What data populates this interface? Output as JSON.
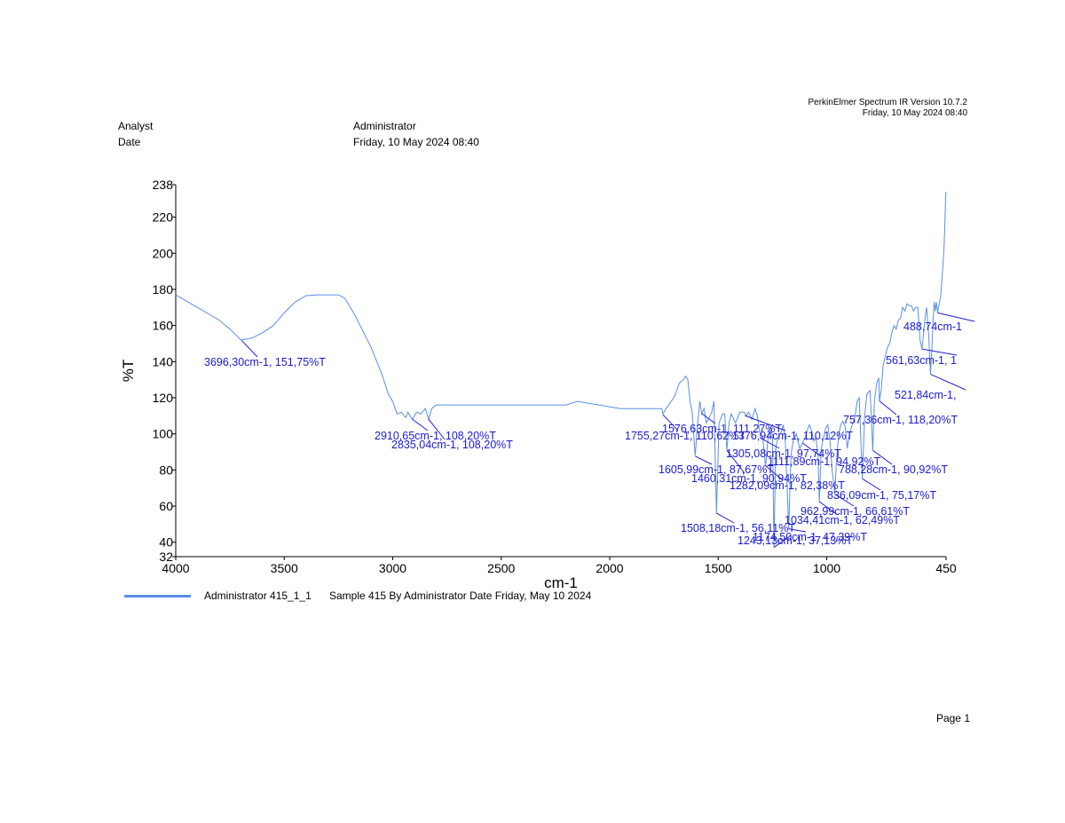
{
  "header": {
    "software": "PerkinElmer Spectrum IR Version 10.7.2",
    "timestamp": "Friday, 10 May 2024 08:40",
    "analyst_label": "Analyst",
    "analyst_value": "Administrator",
    "date_label": "Date",
    "date_value": "Friday, 10 May 2024 08:40"
  },
  "chart_data": {
    "type": "line",
    "xlabel": "cm-1",
    "ylabel": "%T",
    "xlim": [
      4000,
      450
    ],
    "ylim": [
      32,
      238
    ],
    "x_ticks": [
      4000,
      3500,
      3000,
      2500,
      2000,
      1500,
      1000,
      450
    ],
    "y_ticks": [
      32,
      40,
      60,
      80,
      100,
      120,
      140,
      160,
      180,
      200,
      220,
      238
    ],
    "series": [
      {
        "name": "Administrator 415_1_1",
        "color": "#5b8ee6",
        "points": [
          [
            4000,
            177
          ],
          [
            3900,
            170
          ],
          [
            3800,
            163
          ],
          [
            3750,
            158
          ],
          [
            3700,
            152
          ],
          [
            3650,
            153
          ],
          [
            3600,
            156
          ],
          [
            3550,
            160
          ],
          [
            3500,
            167
          ],
          [
            3450,
            173
          ],
          [
            3400,
            176.5
          ],
          [
            3350,
            177
          ],
          [
            3300,
            177
          ],
          [
            3250,
            177
          ],
          [
            3220,
            175
          ],
          [
            3180,
            167
          ],
          [
            3150,
            160
          ],
          [
            3100,
            148
          ],
          [
            3050,
            133
          ],
          [
            3020,
            122
          ],
          [
            3000,
            118
          ],
          [
            2980,
            111
          ],
          [
            2960,
            112
          ],
          [
            2940,
            109
          ],
          [
            2930,
            112
          ],
          [
            2910,
            108
          ],
          [
            2890,
            112
          ],
          [
            2870,
            111
          ],
          [
            2850,
            114
          ],
          [
            2835,
            108
          ],
          [
            2820,
            114
          ],
          [
            2800,
            116
          ],
          [
            2700,
            116
          ],
          [
            2600,
            116
          ],
          [
            2500,
            116
          ],
          [
            2400,
            116
          ],
          [
            2300,
            116
          ],
          [
            2200,
            116
          ],
          [
            2150,
            118
          ],
          [
            2100,
            117
          ],
          [
            2050,
            116
          ],
          [
            2000,
            115
          ],
          [
            1950,
            114
          ],
          [
            1900,
            114
          ],
          [
            1850,
            114
          ],
          [
            1800,
            114
          ],
          [
            1760,
            114
          ],
          [
            1755,
            111
          ],
          [
            1740,
            114
          ],
          [
            1700,
            121
          ],
          [
            1680,
            128
          ],
          [
            1660,
            130
          ],
          [
            1650,
            132
          ],
          [
            1640,
            130
          ],
          [
            1630,
            118
          ],
          [
            1620,
            112
          ],
          [
            1606,
            88
          ],
          [
            1595,
            105
          ],
          [
            1585,
            118
          ],
          [
            1576,
            111
          ],
          [
            1565,
            114
          ],
          [
            1555,
            106
          ],
          [
            1530,
            112
          ],
          [
            1520,
            118
          ],
          [
            1508,
            56
          ],
          [
            1496,
            106
          ],
          [
            1480,
            111
          ],
          [
            1470,
            111
          ],
          [
            1460,
            91
          ],
          [
            1450,
            106
          ],
          [
            1440,
            111
          ],
          [
            1420,
            106
          ],
          [
            1400,
            112
          ],
          [
            1380,
            112
          ],
          [
            1370,
            110
          ],
          [
            1360,
            112
          ],
          [
            1345,
            108
          ],
          [
            1330,
            114
          ],
          [
            1320,
            110
          ],
          [
            1305,
            98
          ],
          [
            1295,
            98
          ],
          [
            1282,
            82
          ],
          [
            1270,
            98
          ],
          [
            1260,
            104
          ],
          [
            1250,
            99
          ],
          [
            1243,
            37
          ],
          [
            1235,
            92
          ],
          [
            1225,
            98
          ],
          [
            1210,
            101
          ],
          [
            1200,
            105
          ],
          [
            1190,
            94
          ],
          [
            1175,
            47
          ],
          [
            1165,
            88
          ],
          [
            1155,
            96
          ],
          [
            1140,
            100
          ],
          [
            1125,
            92
          ],
          [
            1111,
            95
          ],
          [
            1100,
            98
          ],
          [
            1090,
            102
          ],
          [
            1080,
            105
          ],
          [
            1070,
            102
          ],
          [
            1060,
            96
          ],
          [
            1050,
            98
          ],
          [
            1040,
            88
          ],
          [
            1034,
            62
          ],
          [
            1025,
            92
          ],
          [
            1015,
            98
          ],
          [
            1005,
            103
          ],
          [
            995,
            105
          ],
          [
            985,
            96
          ],
          [
            975,
            80
          ],
          [
            963,
            67
          ],
          [
            955,
            85
          ],
          [
            945,
            100
          ],
          [
            935,
            105
          ],
          [
            925,
            107
          ],
          [
            915,
            104
          ],
          [
            905,
            92
          ],
          [
            895,
            100
          ],
          [
            880,
            106
          ],
          [
            870,
            109
          ],
          [
            860,
            118
          ],
          [
            850,
            120
          ],
          [
            836,
            75
          ],
          [
            825,
            110
          ],
          [
            815,
            122
          ],
          [
            800,
            124
          ],
          [
            788,
            91
          ],
          [
            780,
            118
          ],
          [
            770,
            128
          ],
          [
            760,
            131
          ],
          [
            757,
            118
          ],
          [
            748,
            125
          ],
          [
            740,
            138
          ],
          [
            730,
            143
          ],
          [
            720,
            148
          ],
          [
            710,
            150
          ],
          [
            700,
            156
          ],
          [
            690,
            160
          ],
          [
            680,
            158
          ],
          [
            670,
            163
          ],
          [
            660,
            164
          ],
          [
            650,
            170
          ],
          [
            640,
            168
          ],
          [
            630,
            172
          ],
          [
            620,
            171
          ],
          [
            610,
            171
          ],
          [
            600,
            168
          ],
          [
            590,
            170
          ],
          [
            580,
            170
          ],
          [
            570,
            152
          ],
          [
            561,
            147
          ],
          [
            550,
            160
          ],
          [
            545,
            166
          ],
          [
            540,
            170
          ],
          [
            530,
            155
          ],
          [
            522,
            133
          ],
          [
            515,
            148
          ],
          [
            510,
            162
          ],
          [
            505,
            173
          ],
          [
            500,
            168
          ],
          [
            495,
            173
          ],
          [
            489,
            167
          ],
          [
            485,
            170
          ],
          [
            475,
            176
          ],
          [
            470,
            184
          ],
          [
            465,
            192
          ],
          [
            460,
            202
          ],
          [
            455,
            218
          ],
          [
            452,
            232
          ],
          [
            450,
            234
          ]
        ]
      }
    ],
    "annotations": [
      {
        "text": "3696,30cm-1, 151,75%T",
        "x": 3696.3,
        "y": 151.75
      },
      {
        "text": "2910,65cm-1, 108,20%T",
        "x": 2910.65,
        "y": 108.2
      },
      {
        "text": "2835,04cm-1, 108,20%T",
        "x": 2835.04,
        "y": 108.2
      },
      {
        "text": "1755,27cm-1, 110,62%T",
        "x": 1755.27,
        "y": 110.62
      },
      {
        "text": "1576,63cm-1, 111,27%T",
        "x": 1576.63,
        "y": 111.27
      },
      {
        "text": "1376,94cm-1, 110,12%T",
        "x": 1376.94,
        "y": 110.12
      },
      {
        "text": "1605,99cm-1, 87,67%T",
        "x": 1605.99,
        "y": 87.67
      },
      {
        "text": "1460,31cm-1, 90,94%T",
        "x": 1460.31,
        "y": 90.94
      },
      {
        "text": "1305,08cm-1, 97,74%T",
        "x": 1305.08,
        "y": 97.74
      },
      {
        "text": "1282,09cm-1, 82,38%T",
        "x": 1282.09,
        "y": 82.38
      },
      {
        "text": "1111,89cm-1, 94,92%T",
        "x": 1111.89,
        "y": 94.92
      },
      {
        "text": "1508,18cm-1, 56,11%T",
        "x": 1508.18,
        "y": 56.11
      },
      {
        "text": "1243,13cm-1, 37,13%T",
        "x": 1243.13,
        "y": 37.13
      },
      {
        "text": "1174,50cm-1, 47,39%T",
        "x": 1174.5,
        "y": 47.39
      },
      {
        "text": "1034,41cm-1, 62,49%T",
        "x": 1034.41,
        "y": 62.49
      },
      {
        "text": "962,99cm-1, 66,61%T",
        "x": 962.99,
        "y": 66.61
      },
      {
        "text": "836,09cm-1, 75,17%T",
        "x": 836.09,
        "y": 75.17
      },
      {
        "text": "788,28cm-1, 90,92%T",
        "x": 788.28,
        "y": 90.92
      },
      {
        "text": "757,36cm-1, 118,20%T",
        "x": 757.36,
        "y": 118.2
      },
      {
        "text": "521,84cm-1,",
        "x": 521.84,
        "y": 133.0
      },
      {
        "text": "561,63cm-1, 1",
        "x": 561.63,
        "y": 147.0
      },
      {
        "text": "488,74cm-1",
        "x": 488.74,
        "y": 167.0
      }
    ]
  },
  "legend": {
    "name": "Administrator 415_1_1",
    "description": "Sample 415 By Administrator Date Friday, May 10 2024"
  },
  "footer": {
    "page": "Page 1"
  }
}
